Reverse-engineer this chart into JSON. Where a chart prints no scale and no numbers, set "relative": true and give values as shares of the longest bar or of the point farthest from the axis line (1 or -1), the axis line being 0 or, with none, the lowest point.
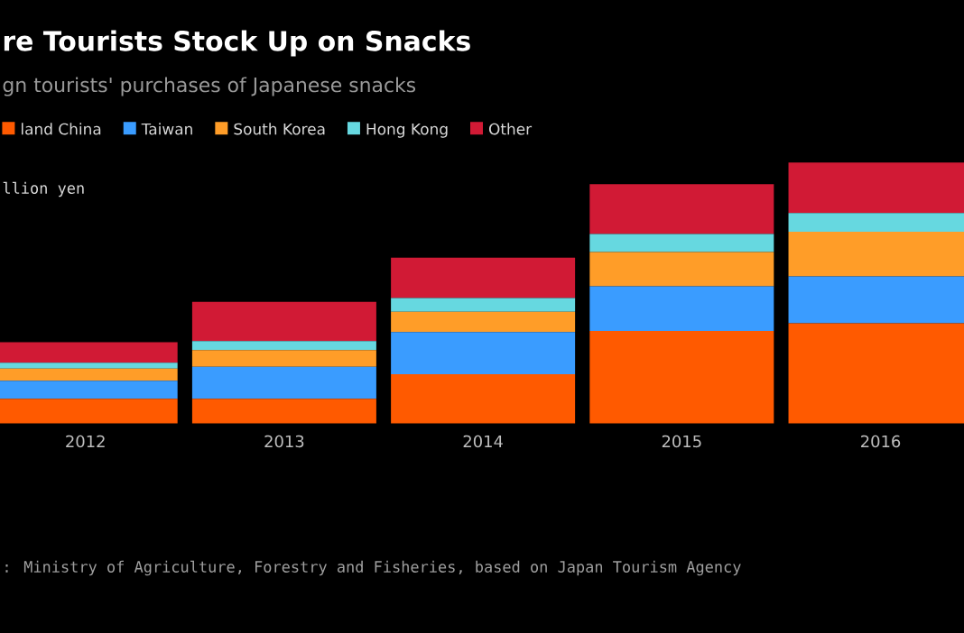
{
  "chart_data": {
    "type": "bar",
    "stacked": true,
    "relative": true,
    "title": "re Tourists Stock Up on Snacks",
    "subtitle": "gn tourists' purchases of Japanese snacks",
    "ylabel": "llion yen",
    "annotations": [
      ": Ministry of Agriculture, Forestry and Fisheries, based on Japan Tourism Agency"
    ],
    "categories": [
      "2012",
      "2013",
      "2014",
      "2015",
      "2016"
    ],
    "legend": "top left",
    "series": [
      {
        "name": "land China",
        "color": "#ff5a00",
        "values": [
          0.095,
          0.095,
          0.189,
          0.355,
          0.384
        ]
      },
      {
        "name": "Taiwan",
        "color": "#3a9cff",
        "values": [
          0.069,
          0.122,
          0.161,
          0.171,
          0.18
        ]
      },
      {
        "name": "South Korea",
        "color": "#ff9d28",
        "values": [
          0.046,
          0.064,
          0.078,
          0.131,
          0.171
        ]
      },
      {
        "name": "Hong Kong",
        "color": "#66d8e0",
        "values": [
          0.023,
          0.035,
          0.053,
          0.069,
          0.071
        ]
      },
      {
        "name": "Other",
        "color": "#d11a35",
        "values": [
          0.078,
          0.15,
          0.154,
          0.191,
          0.194
        ]
      }
    ]
  }
}
